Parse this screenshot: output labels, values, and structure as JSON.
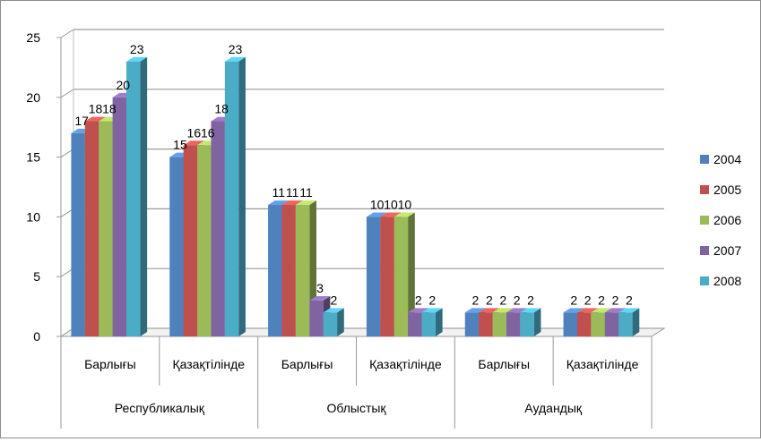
{
  "chart_data": {
    "type": "bar",
    "title": "",
    "xlabel": "",
    "ylabel": "",
    "ylim": [
      0,
      25
    ],
    "yticks": [
      0,
      5,
      10,
      15,
      20,
      25
    ],
    "grid": true,
    "legend_position": "right",
    "categories": [
      "Барлығы",
      "Қазақтілінде",
      "Барлығы",
      "Қазақтілінде",
      "Барлығы",
      "Қазақтілінде"
    ],
    "groups": [
      {
        "label": "Республикалық",
        "span": 2
      },
      {
        "label": "Облыстық",
        "span": 2
      },
      {
        "label": "Аудандық",
        "span": 2
      }
    ],
    "series": [
      {
        "name": "2004",
        "color": "#4F81BD",
        "values": [
          17,
          15,
          11,
          10,
          2,
          2
        ]
      },
      {
        "name": "2005",
        "color": "#C0504D",
        "values": [
          18,
          16,
          11,
          10,
          2,
          2
        ]
      },
      {
        "name": "2006",
        "color": "#9BBB59",
        "values": [
          18,
          16,
          11,
          10,
          2,
          2
        ]
      },
      {
        "name": "2007",
        "color": "#8064A2",
        "values": [
          20,
          18,
          3,
          2,
          2,
          2
        ]
      },
      {
        "name": "2008",
        "color": "#4BACC6",
        "values": [
          23,
          23,
          2,
          2,
          2,
          2
        ]
      }
    ]
  }
}
